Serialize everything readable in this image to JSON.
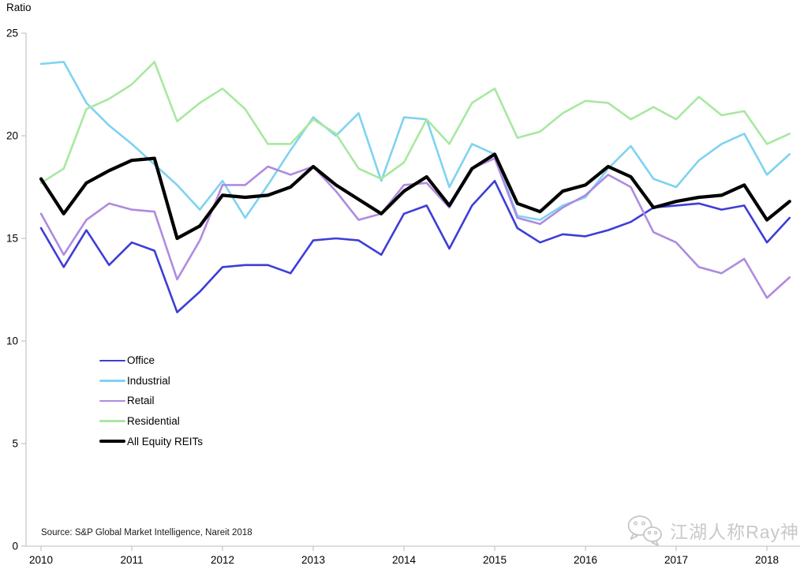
{
  "page": {
    "background": "#ffffff"
  },
  "chart_data": {
    "type": "line",
    "title": "",
    "ylabel": "Ratio",
    "xlabel": "",
    "ylim": [
      0,
      25
    ],
    "yticks": [
      0,
      5,
      10,
      15,
      20,
      25
    ],
    "x_year_ticks": [
      "2010",
      "2011",
      "2012",
      "2013",
      "2014",
      "2015",
      "2016",
      "2017",
      "2018"
    ],
    "grid": "off",
    "legend_position": "inside-left-middle",
    "x_quarters": [
      "2010Q1",
      "2010Q2",
      "2010Q3",
      "2010Q4",
      "2011Q1",
      "2011Q2",
      "2011Q3",
      "2011Q4",
      "2012Q1",
      "2012Q2",
      "2012Q3",
      "2012Q4",
      "2013Q1",
      "2013Q2",
      "2013Q3",
      "2013Q4",
      "2014Q1",
      "2014Q2",
      "2014Q3",
      "2014Q4",
      "2015Q1",
      "2015Q2",
      "2015Q3",
      "2015Q4",
      "2016Q1",
      "2016Q2",
      "2016Q3",
      "2016Q4",
      "2017Q1",
      "2017Q2",
      "2017Q3",
      "2017Q4",
      "2018Q1",
      "2018Q2"
    ],
    "series": [
      {
        "name": "Office",
        "color": "#3d3dd8",
        "width": 2.6,
        "values": [
          15.5,
          13.6,
          15.4,
          13.7,
          14.8,
          14.4,
          11.4,
          12.4,
          13.6,
          13.7,
          13.7,
          13.3,
          14.9,
          15.0,
          14.9,
          14.2,
          16.2,
          16.6,
          14.5,
          16.6,
          17.8,
          15.5,
          14.8,
          15.2,
          15.1,
          15.4,
          15.8,
          16.5,
          16.6,
          16.7,
          16.4,
          16.6,
          14.8,
          16.0
        ]
      },
      {
        "name": "Industrial",
        "color": "#7ed3f0",
        "width": 2.6,
        "values": [
          23.5,
          23.6,
          21.6,
          20.5,
          19.6,
          18.6,
          17.6,
          16.4,
          17.8,
          16.0,
          17.6,
          19.3,
          20.9,
          20.0,
          21.1,
          17.8,
          20.9,
          20.8,
          17.5,
          19.6,
          19.1,
          16.1,
          15.9,
          16.6,
          17.0,
          18.4,
          19.5,
          17.9,
          17.5,
          18.8,
          19.6,
          20.1,
          18.1,
          19.1
        ]
      },
      {
        "name": "Retail",
        "color": "#af8ae0",
        "width": 2.6,
        "values": [
          16.2,
          14.2,
          15.9,
          16.7,
          16.4,
          16.3,
          13.0,
          14.9,
          17.6,
          17.6,
          18.5,
          18.1,
          18.5,
          17.3,
          15.9,
          16.2,
          17.6,
          17.7,
          16.5,
          18.4,
          18.9,
          16.0,
          15.7,
          16.5,
          17.1,
          18.1,
          17.5,
          15.3,
          14.8,
          13.6,
          13.3,
          14.0,
          12.1,
          13.1
        ]
      },
      {
        "name": "Residential",
        "color": "#a8e8a0",
        "width": 2.6,
        "values": [
          17.7,
          18.4,
          21.3,
          21.8,
          22.5,
          23.6,
          20.7,
          21.6,
          22.3,
          21.3,
          19.6,
          19.6,
          20.8,
          20.1,
          18.4,
          17.9,
          18.7,
          20.8,
          19.6,
          21.6,
          22.3,
          19.9,
          20.2,
          21.1,
          21.7,
          21.6,
          20.8,
          21.4,
          20.8,
          21.9,
          21.0,
          21.2,
          19.6,
          20.1
        ]
      },
      {
        "name": "All Equity REITs",
        "color": "#000000",
        "width": 4.2,
        "values": [
          17.9,
          16.2,
          17.7,
          18.3,
          18.8,
          18.9,
          15.0,
          15.6,
          17.1,
          17.0,
          17.1,
          17.5,
          18.5,
          17.6,
          16.9,
          16.2,
          17.3,
          18.0,
          16.6,
          18.4,
          19.1,
          16.7,
          16.3,
          17.3,
          17.6,
          18.5,
          18.0,
          16.5,
          16.8,
          17.0,
          17.1,
          17.6,
          15.9,
          16.8
        ]
      }
    ]
  },
  "axis": {
    "line_color": "#c9c9c9",
    "label_color": "#000000"
  },
  "source": {
    "text": "Source: S&P Global Market Intelligence, Nareit 2018"
  },
  "watermark": {
    "text": "江湖人称Ray神",
    "icon": "wechat-icon",
    "color": "#c9c9c9"
  }
}
